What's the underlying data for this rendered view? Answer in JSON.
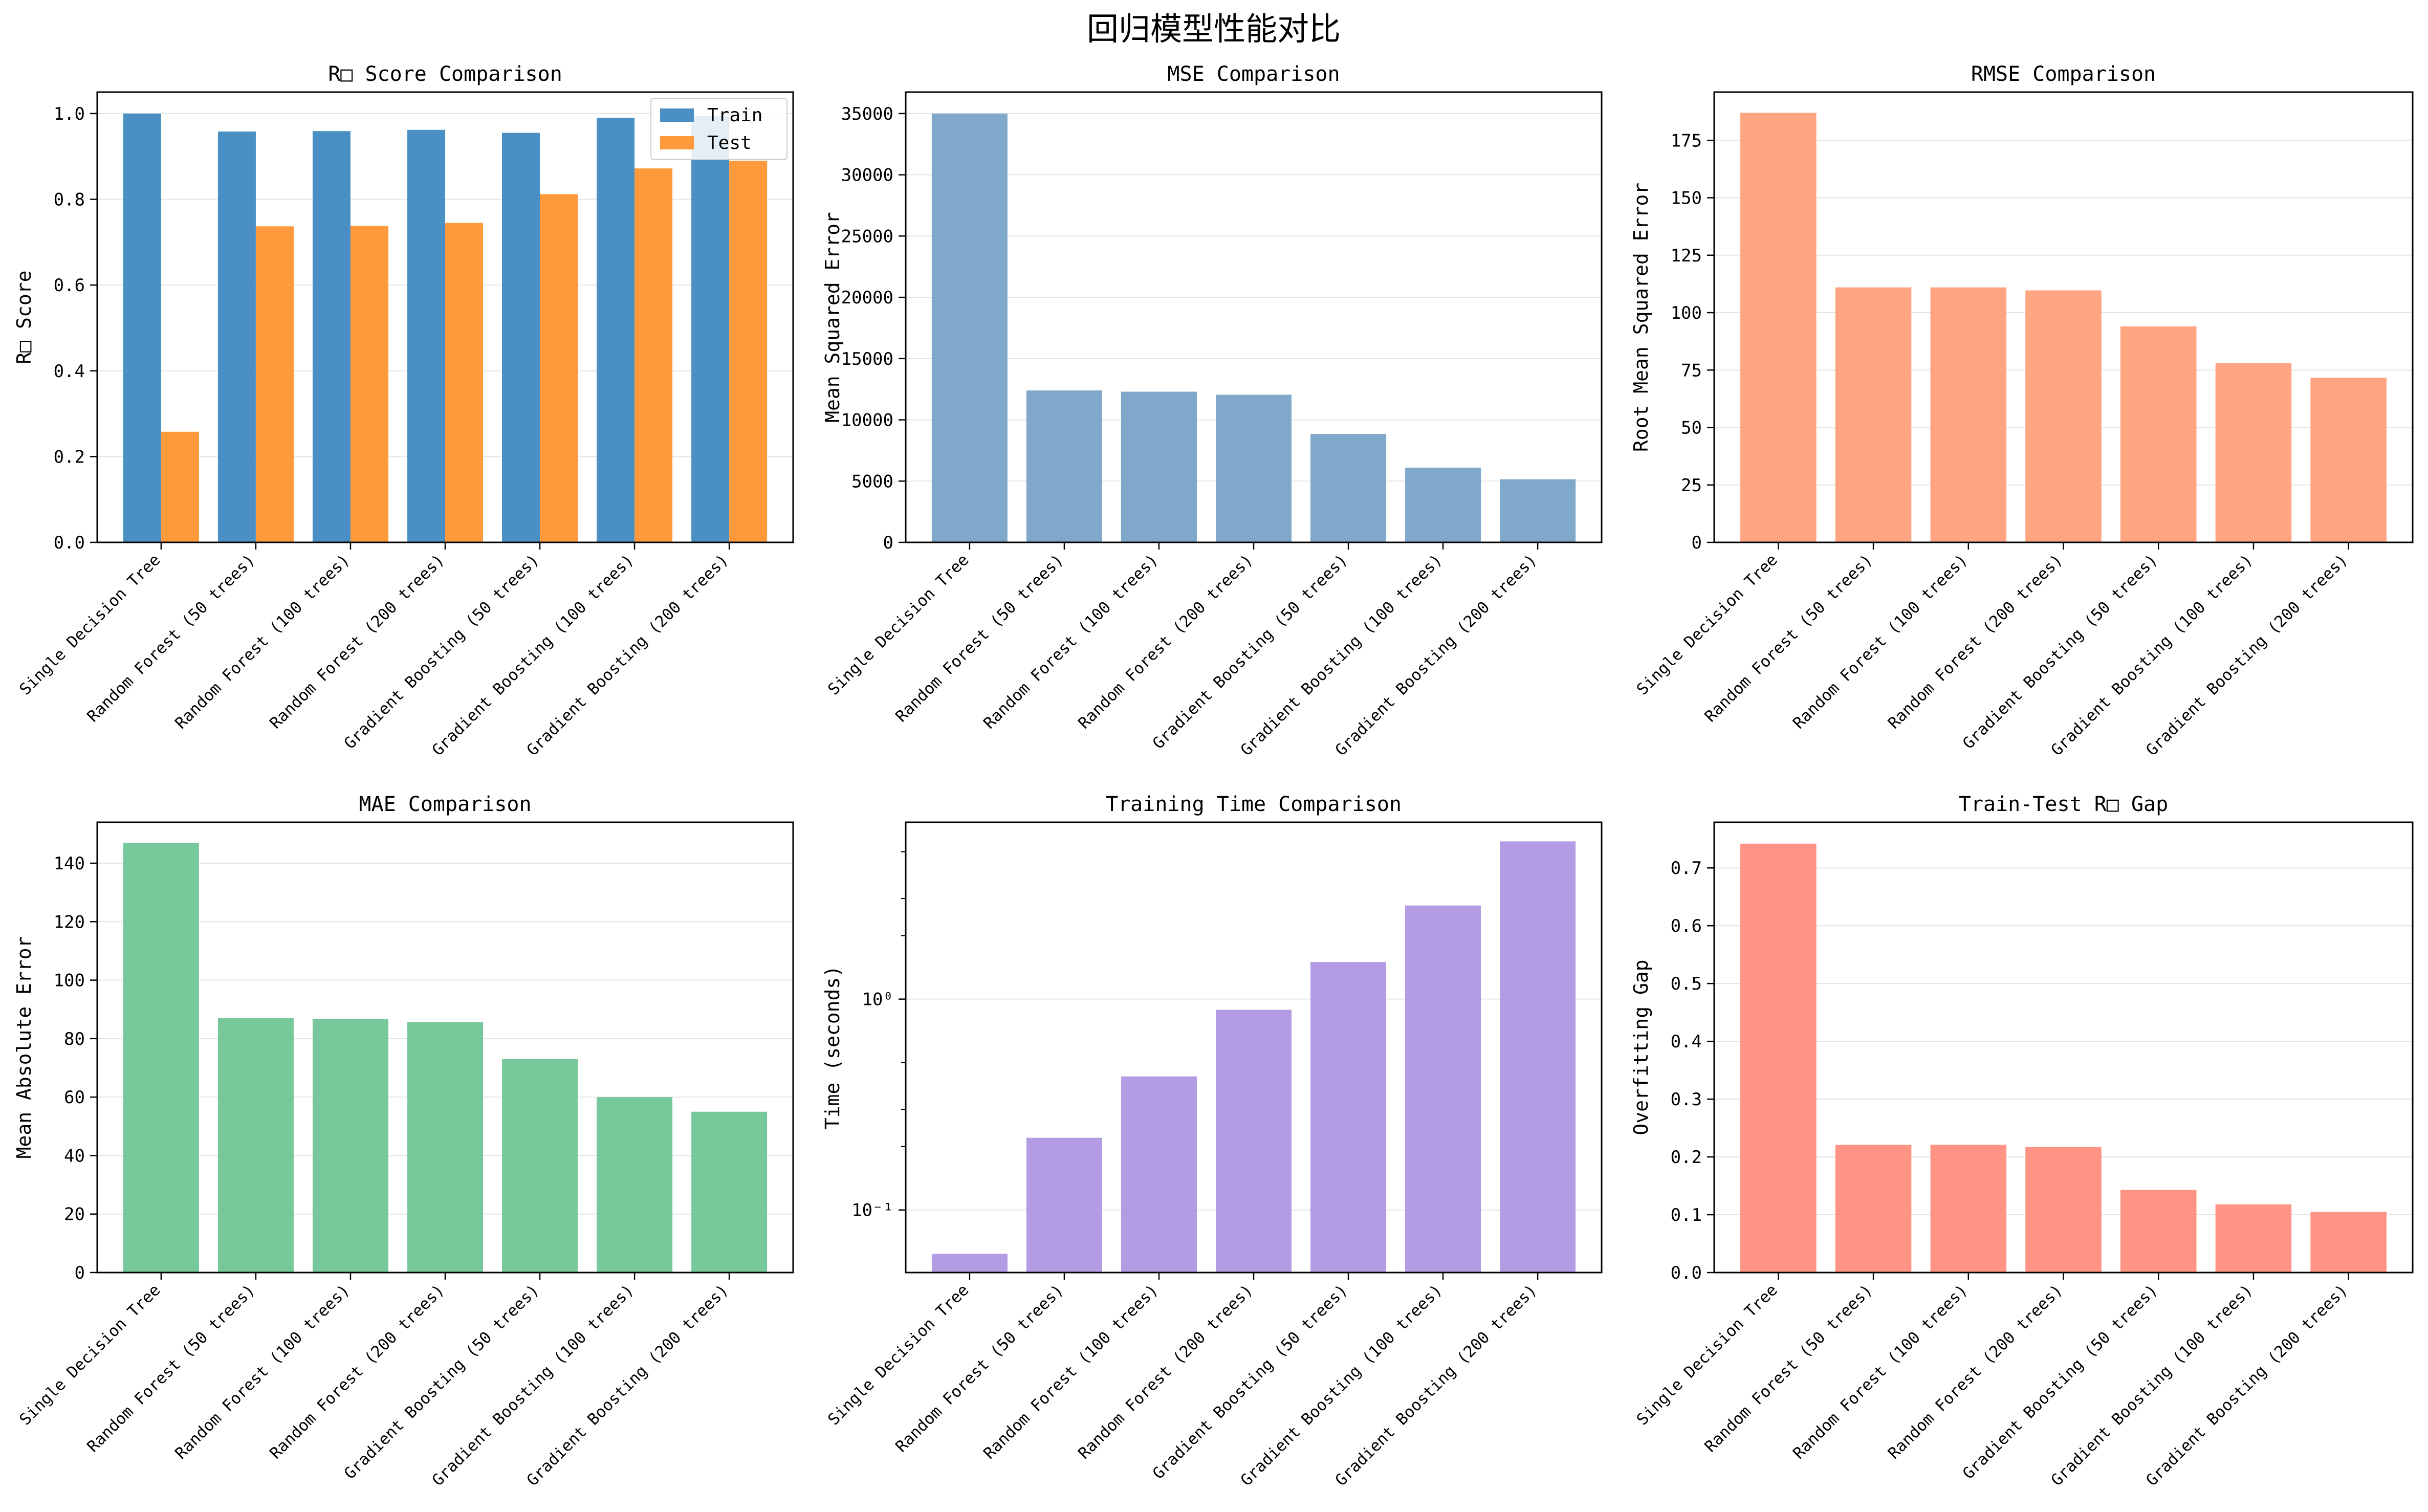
{
  "suptitle": "回归模型性能对比",
  "legend": {
    "train": "Train",
    "test": "Test"
  },
  "colors": {
    "train": "#4a90c4",
    "test": "#ff9a3c",
    "mse": "#7fa8cb",
    "rmse": "#ffa582",
    "mae": "#77c99c",
    "time": "#b39ce4",
    "gap": "#ff9485",
    "grid": "#e5e5e5"
  },
  "chart_data": [
    {
      "id": "r2",
      "type": "bar",
      "title": "R□ Score Comparison",
      "xlabel": "",
      "ylabel": "R□ Score",
      "categories": [
        "Single Decision Tree",
        "Random Forest (50 trees)",
        "Random Forest (100 trees)",
        "Random Forest (200 trees)",
        "Gradient Boosting (50 trees)",
        "Gradient Boosting (100 trees)",
        "Gradient Boosting (200 trees)"
      ],
      "series": [
        {
          "name": "Train",
          "values": [
            1.0,
            0.958,
            0.959,
            0.962,
            0.955,
            0.99,
            0.995
          ]
        },
        {
          "name": "Test",
          "values": [
            0.258,
            0.737,
            0.738,
            0.745,
            0.812,
            0.872,
            0.89
          ]
        }
      ],
      "ylim": [
        0,
        1.05
      ],
      "yticks": [
        0,
        0.2,
        0.4,
        0.6,
        0.8,
        1.0
      ],
      "ytick_labels": [
        "0.0",
        "0.2",
        "0.4",
        "0.6",
        "0.8",
        "1.0"
      ],
      "grid": true,
      "legend": "top-right"
    },
    {
      "id": "mse",
      "type": "bar",
      "title": "MSE Comparison",
      "xlabel": "",
      "ylabel": "Mean Squared Error",
      "categories": [
        "Single Decision Tree",
        "Random Forest (50 trees)",
        "Random Forest (100 trees)",
        "Random Forest (200 trees)",
        "Gradient Boosting (50 trees)",
        "Gradient Boosting (100 trees)",
        "Gradient Boosting (200 trees)"
      ],
      "values": [
        35000,
        12400,
        12300,
        12050,
        8850,
        6100,
        5150
      ],
      "ylim": [
        0,
        36750
      ],
      "yticks": [
        0,
        5000,
        10000,
        15000,
        20000,
        25000,
        30000,
        35000
      ],
      "ytick_labels": [
        "0",
        "5000",
        "10000",
        "15000",
        "20000",
        "25000",
        "30000",
        "35000"
      ],
      "grid": true
    },
    {
      "id": "rmse",
      "type": "bar",
      "title": "RMSE Comparison",
      "xlabel": "",
      "ylabel": "Root Mean Squared Error",
      "categories": [
        "Single Decision Tree",
        "Random Forest (50 trees)",
        "Random Forest (100 trees)",
        "Random Forest (200 trees)",
        "Gradient Boosting (50 trees)",
        "Gradient Boosting (100 trees)",
        "Gradient Boosting (200 trees)"
      ],
      "values": [
        187,
        111,
        111,
        109.7,
        94,
        78,
        71.7
      ],
      "ylim": [
        0,
        196
      ],
      "yticks": [
        0,
        25,
        50,
        75,
        100,
        125,
        150,
        175
      ],
      "ytick_labels": [
        "0",
        "25",
        "50",
        "75",
        "100",
        "125",
        "150",
        "175"
      ],
      "grid": true
    },
    {
      "id": "mae",
      "type": "bar",
      "title": "MAE Comparison",
      "xlabel": "",
      "ylabel": "Mean Absolute Error",
      "categories": [
        "Single Decision Tree",
        "Random Forest (50 trees)",
        "Random Forest (100 trees)",
        "Random Forest (200 trees)",
        "Gradient Boosting (50 trees)",
        "Gradient Boosting (100 trees)",
        "Gradient Boosting (200 trees)"
      ],
      "values": [
        147,
        87,
        86.8,
        85.7,
        73,
        60,
        55
      ],
      "ylim": [
        0,
        154
      ],
      "yticks": [
        0,
        20,
        40,
        60,
        80,
        100,
        120,
        140
      ],
      "ytick_labels": [
        "0",
        "20",
        "40",
        "60",
        "80",
        "100",
        "120",
        "140"
      ],
      "grid": true
    },
    {
      "id": "time",
      "type": "bar",
      "scale": "log",
      "title": "Training Time Comparison",
      "xlabel": "",
      "ylabel": "Time (seconds)",
      "categories": [
        "Single Decision Tree",
        "Random Forest (50 trees)",
        "Random Forest (100 trees)",
        "Random Forest (200 trees)",
        "Gradient Boosting (50 trees)",
        "Gradient Boosting (100 trees)",
        "Gradient Boosting (200 trees)"
      ],
      "values": [
        0.062,
        0.22,
        0.43,
        0.89,
        1.5,
        2.78,
        5.6
      ],
      "ylim": [
        0.0505,
        6.9
      ],
      "yticks": [
        0.1,
        1
      ],
      "ytick_labels": [
        "10⁻¹",
        "10⁰"
      ],
      "grid": true
    },
    {
      "id": "gap",
      "type": "bar",
      "title": "Train-Test R□ Gap",
      "xlabel": "",
      "ylabel": "Overfitting Gap",
      "categories": [
        "Single Decision Tree",
        "Random Forest (50 trees)",
        "Random Forest (100 trees)",
        "Random Forest (200 trees)",
        "Gradient Boosting (50 trees)",
        "Gradient Boosting (100 trees)",
        "Gradient Boosting (200 trees)"
      ],
      "values": [
        0.742,
        0.221,
        0.221,
        0.217,
        0.143,
        0.118,
        0.105
      ],
      "ylim": [
        0,
        0.779
      ],
      "yticks": [
        0,
        0.1,
        0.2,
        0.3,
        0.4,
        0.5,
        0.6,
        0.7
      ],
      "ytick_labels": [
        "0.0",
        "0.1",
        "0.2",
        "0.3",
        "0.4",
        "0.5",
        "0.6",
        "0.7"
      ],
      "grid": true,
      "reference_line": 0
    }
  ]
}
